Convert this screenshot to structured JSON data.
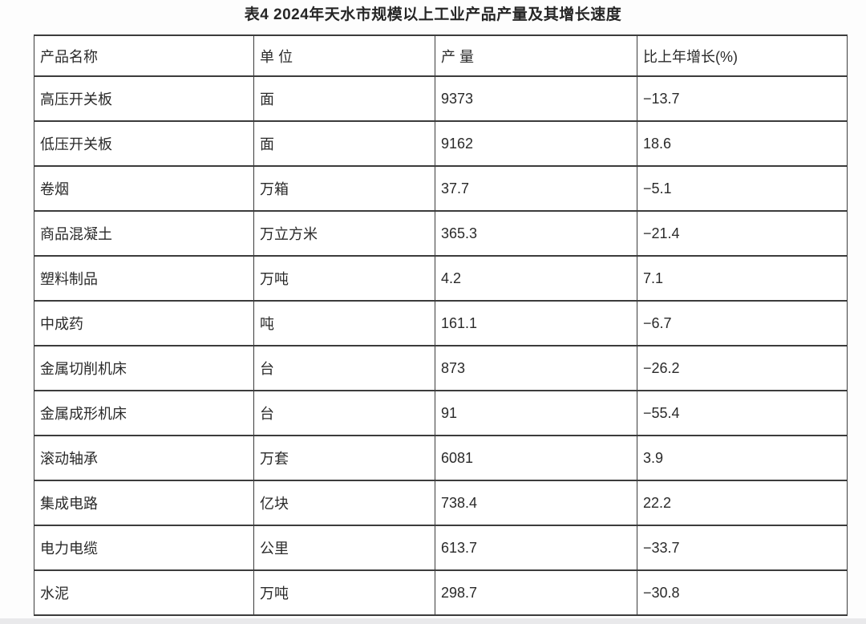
{
  "page": {
    "title": "表4 2024年天水市规模以上工业产品产量及其增长速度",
    "background_color": "#fdfdfd",
    "table_background_color": "#ffffff",
    "grid_border_color": "#3c3c3c",
    "text_color": "#2a2a2a",
    "bottom_edge_color": "#e9e9eb"
  },
  "table": {
    "headers": [
      "产品名称",
      "单 位",
      "产 量",
      "比上年增长(%)"
    ],
    "rows": [
      {
        "product": "高压开关板",
        "unit": "面",
        "output": "9373",
        "growth": "−13.7"
      },
      {
        "product": "低压开关板",
        "unit": "面",
        "output": "9162",
        "growth": "18.6"
      },
      {
        "product": "卷烟",
        "unit": "万箱",
        "output": "37.7",
        "growth": "−5.1"
      },
      {
        "product": "商品混凝土",
        "unit": "万立方米",
        "output": "365.3",
        "growth": "−21.4"
      },
      {
        "product": "塑料制品",
        "unit": "万吨",
        "output": "4.2",
        "growth": "7.1"
      },
      {
        "product": "中成药",
        "unit": "吨",
        "output": "161.1",
        "growth": "−6.7"
      },
      {
        "product": "金属切削机床",
        "unit": "台",
        "output": "873",
        "growth": "−26.2"
      },
      {
        "product": "金属成形机床",
        "unit": "台",
        "output": "91",
        "growth": "−55.4"
      },
      {
        "product": "滚动轴承",
        "unit": "万套",
        "output": "6081",
        "growth": "3.9"
      },
      {
        "product": "集成电路",
        "unit": "亿块",
        "output": "738.4",
        "growth": "22.2"
      },
      {
        "product": "电力电缆",
        "unit": "公里",
        "output": "613.7",
        "growth": "−33.7"
      },
      {
        "product": "水泥",
        "unit": "万吨",
        "output": "298.7",
        "growth": "−30.8"
      }
    ]
  },
  "chart_data": {
    "type": "table",
    "title": "表4 2024年天水市规模以上工业产品产量及其增长速度",
    "columns": [
      "产品名称",
      "单 位",
      "产 量",
      "比上年增长(%)"
    ],
    "rows": [
      [
        "高压开关板",
        "面",
        9373,
        -13.7
      ],
      [
        "低压开关板",
        "面",
        9162,
        18.6
      ],
      [
        "卷烟",
        "万箱",
        37.7,
        -5.1
      ],
      [
        "商品混凝土",
        "万立方米",
        365.3,
        -21.4
      ],
      [
        "塑料制品",
        "万吨",
        4.2,
        7.1
      ],
      [
        "中成药",
        "吨",
        161.1,
        -6.7
      ],
      [
        "金属切削机床",
        "台",
        873,
        -26.2
      ],
      [
        "金属成形机床",
        "台",
        91,
        -55.4
      ],
      [
        "滚动轴承",
        "万套",
        6081,
        3.9
      ],
      [
        "集成电路",
        "亿块",
        738.4,
        22.2
      ],
      [
        "电力电缆",
        "公里",
        613.7,
        -33.7
      ],
      [
        "水泥",
        "万吨",
        298.7,
        -30.8
      ]
    ]
  }
}
